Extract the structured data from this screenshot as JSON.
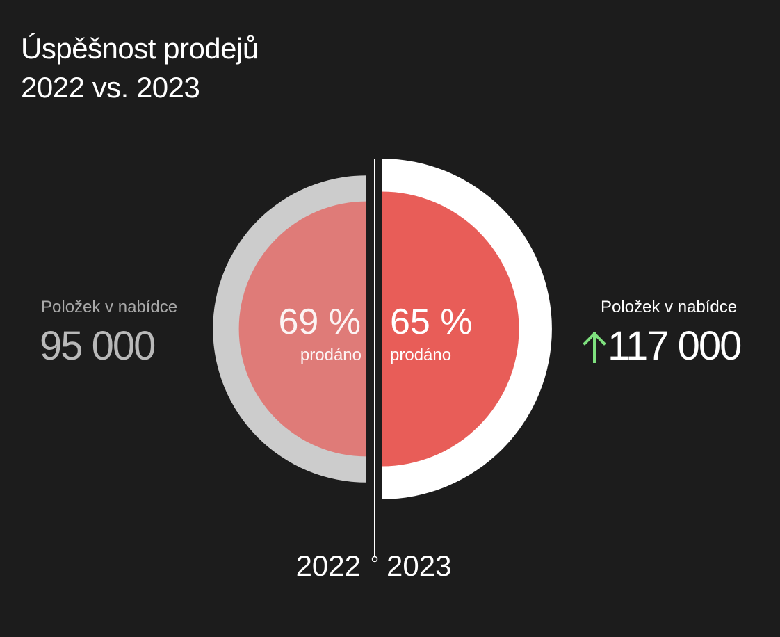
{
  "header": {
    "title_line1": "Úspěšnost prodejů",
    "title_line2": "2022 vs. 2023"
  },
  "chart_data": {
    "type": "pie",
    "series": [
      {
        "name": "2022",
        "offered": 95000,
        "offered_label": "Položek v nabídce",
        "offered_display": "95 000",
        "sold_percent": 69,
        "percent_display": "69 %",
        "sold_label": "prodáno",
        "outer_color": "#cccccc",
        "inner_color": "#df7b78"
      },
      {
        "name": "2023",
        "offered": 117000,
        "offered_label": "Položek v nabídce",
        "offered_display": "117 000",
        "sold_percent": 65,
        "percent_display": "65 %",
        "sold_label": "prodáno",
        "outer_color": "#ffffff",
        "inner_color": "#e85d58"
      }
    ],
    "change_indicator": "up-arrow-icon",
    "change_color": "#7ee07e"
  }
}
